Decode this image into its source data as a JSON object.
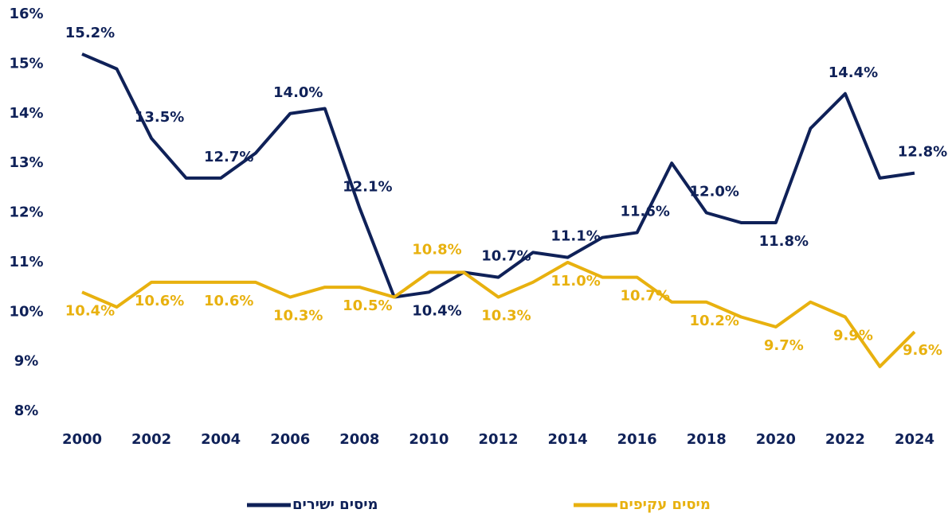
{
  "chart_data": {
    "type": "line",
    "x": [
      2000,
      2001,
      2002,
      2003,
      2004,
      2005,
      2006,
      2007,
      2008,
      2009,
      2010,
      2011,
      2012,
      2013,
      2014,
      2015,
      2016,
      2017,
      2018,
      2019,
      2020,
      2021,
      2022,
      2023,
      2024
    ],
    "series": [
      {
        "name": "מיסים ישירים",
        "color": "#0f2158",
        "values": [
          15.2,
          14.9,
          13.5,
          12.7,
          12.7,
          13.2,
          14.0,
          14.1,
          12.1,
          10.3,
          10.4,
          10.8,
          10.7,
          11.2,
          11.1,
          11.5,
          11.6,
          13.0,
          12.0,
          11.8,
          11.8,
          13.7,
          14.4,
          12.7,
          12.8
        ],
        "value_labels": [
          "15.2%",
          null,
          "13.5%",
          null,
          "12.7%",
          null,
          "14.0%",
          null,
          "12.1%",
          null,
          "10.4%",
          null,
          "10.7%",
          null,
          "11.1%",
          null,
          "11.6%",
          null,
          "12.0%",
          null,
          "11.8%",
          null,
          "14.4%",
          null,
          "12.8%"
        ]
      },
      {
        "name": "מיסים עקיפים",
        "color": "#e8b10f",
        "values": [
          10.4,
          10.1,
          10.6,
          10.6,
          10.6,
          10.6,
          10.3,
          10.5,
          10.5,
          10.3,
          10.8,
          10.8,
          10.3,
          10.6,
          11.0,
          10.7,
          10.7,
          10.2,
          10.2,
          9.9,
          9.7,
          10.2,
          9.9,
          8.9,
          9.6
        ],
        "value_labels": [
          "10.4%",
          null,
          "10.6%",
          null,
          "10.6%",
          null,
          "10.3%",
          null,
          "10.5%",
          null,
          "10.8%",
          null,
          "10.3%",
          null,
          "11.0%",
          null,
          "10.7%",
          null,
          "10.2%",
          null,
          "9.7%",
          null,
          "9.9%",
          null,
          "9.6%"
        ]
      }
    ],
    "xlim": [
      2000,
      2024
    ],
    "xticks": [
      2000,
      2002,
      2004,
      2006,
      2008,
      2010,
      2012,
      2014,
      2016,
      2018,
      2020,
      2022,
      2024
    ],
    "ylim": [
      8,
      16
    ],
    "yticks": [
      {
        "value": 8,
        "label": "8%"
      },
      {
        "value": 9,
        "label": "9%"
      },
      {
        "value": 10,
        "label": "10%"
      },
      {
        "value": 11,
        "label": "11%"
      },
      {
        "value": 12,
        "label": "12%"
      },
      {
        "value": 13,
        "label": "13%"
      },
      {
        "value": 14,
        "label": "14%"
      },
      {
        "value": 15,
        "label": "15%"
      },
      {
        "value": 16,
        "label": "16%"
      }
    ],
    "grid": false
  }
}
